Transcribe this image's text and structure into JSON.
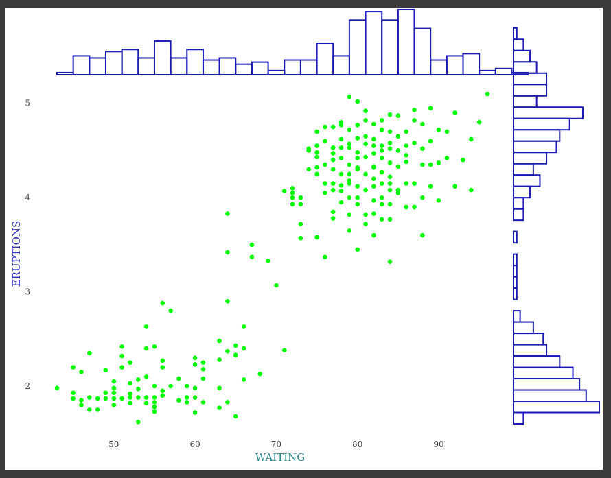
{
  "colors": {
    "points": "#00ff00",
    "histogram_stroke": "#1a1ab3",
    "x_label": "#2a8a8a",
    "y_label": "#3333cc",
    "ticks": "#444444"
  },
  "chart_data": [
    {
      "type": "scatter",
      "xlabel": "WAITING",
      "ylabel": "ERUPTIONS",
      "xlim": [
        43,
        96
      ],
      "ylim": [
        1.6,
        5.1
      ],
      "xticks": [
        50,
        60,
        70,
        80,
        90
      ],
      "yticks": [
        2,
        3,
        4,
        5
      ],
      "grid": false,
      "points": [
        [
          43,
          1.98
        ],
        [
          45,
          2.2
        ],
        [
          45,
          1.93
        ],
        [
          45,
          1.87
        ],
        [
          46,
          2.15
        ],
        [
          46,
          1.85
        ],
        [
          46,
          1.8
        ],
        [
          47,
          2.35
        ],
        [
          47,
          1.88
        ],
        [
          47,
          1.75
        ],
        [
          48,
          1.87
        ],
        [
          48,
          1.75
        ],
        [
          49,
          2.17
        ],
        [
          49,
          1.93
        ],
        [
          49,
          1.87
        ],
        [
          50,
          2.05
        ],
        [
          50,
          1.93
        ],
        [
          50,
          1.87
        ],
        [
          50,
          1.98
        ],
        [
          50,
          1.8
        ],
        [
          51,
          2.42
        ],
        [
          51,
          2.32
        ],
        [
          51,
          2.2
        ],
        [
          51,
          1.87
        ],
        [
          52,
          2.25
        ],
        [
          52,
          2.03
        ],
        [
          52,
          1.92
        ],
        [
          52,
          1.88
        ],
        [
          52,
          1.82
        ],
        [
          53,
          2.07
        ],
        [
          53,
          1.97
        ],
        [
          53,
          1.88
        ],
        [
          53,
          1.62
        ],
        [
          54,
          2.63
        ],
        [
          54,
          2.4
        ],
        [
          54,
          2.1
        ],
        [
          54,
          1.82
        ],
        [
          54,
          1.88
        ],
        [
          55,
          2.42
        ],
        [
          55,
          2.0
        ],
        [
          55,
          1.88
        ],
        [
          55,
          1.83
        ],
        [
          55,
          1.78
        ],
        [
          55,
          1.73
        ],
        [
          56,
          2.88
        ],
        [
          56,
          2.27
        ],
        [
          56,
          2.2
        ],
        [
          56,
          1.9
        ],
        [
          56,
          1.95
        ],
        [
          57,
          2.8
        ],
        [
          57,
          2.0
        ],
        [
          58,
          2.08
        ],
        [
          58,
          1.85
        ],
        [
          59,
          2.0
        ],
        [
          59,
          1.88
        ],
        [
          59,
          1.83
        ],
        [
          60,
          2.3
        ],
        [
          60,
          2.23
        ],
        [
          60,
          1.98
        ],
        [
          60,
          1.88
        ],
        [
          60,
          1.72
        ],
        [
          61,
          2.25
        ],
        [
          61,
          2.18
        ],
        [
          61,
          2.08
        ],
        [
          61,
          1.83
        ],
        [
          63,
          2.48
        ],
        [
          63,
          2.28
        ],
        [
          63,
          1.98
        ],
        [
          63,
          1.77
        ],
        [
          64,
          2.9
        ],
        [
          64,
          2.37
        ],
        [
          64,
          1.83
        ],
        [
          65,
          2.33
        ],
        [
          65,
          2.43
        ],
        [
          65,
          1.68
        ],
        [
          66,
          2.63
        ],
        [
          66,
          2.4
        ],
        [
          66,
          2.07
        ],
        [
          67,
          3.5
        ],
        [
          67,
          3.37
        ],
        [
          68,
          2.13
        ],
        [
          64,
          3.83
        ],
        [
          64,
          3.42
        ],
        [
          69,
          3.33
        ],
        [
          70,
          3.07
        ],
        [
          71,
          2.38
        ],
        [
          71,
          4.07
        ],
        [
          72,
          4.1
        ],
        [
          72,
          4.05
        ],
        [
          72,
          4.0
        ],
        [
          72,
          3.93
        ],
        [
          73,
          3.72
        ],
        [
          73,
          3.57
        ],
        [
          73,
          4.0
        ],
        [
          73,
          3.93
        ],
        [
          74,
          4.3
        ],
        [
          74,
          4.52
        ],
        [
          75,
          4.7
        ],
        [
          75,
          4.48
        ],
        [
          75,
          4.43
        ],
        [
          75,
          4.32
        ],
        [
          75,
          4.25
        ],
        [
          75,
          3.58
        ],
        [
          76,
          4.35
        ],
        [
          76,
          4.15
        ],
        [
          76,
          3.37
        ],
        [
          77,
          4.75
        ],
        [
          77,
          4.47
        ],
        [
          77,
          4.53
        ],
        [
          77,
          4.15
        ],
        [
          77,
          4.08
        ],
        [
          77,
          3.85
        ],
        [
          77,
          3.78
        ],
        [
          78,
          4.77
        ],
        [
          78,
          4.8
        ],
        [
          78,
          4.53
        ],
        [
          78,
          4.42
        ],
        [
          78,
          4.25
        ],
        [
          78,
          4.13
        ],
        [
          78,
          4.07
        ],
        [
          79,
          5.07
        ],
        [
          79,
          4.72
        ],
        [
          79,
          4.53
        ],
        [
          79,
          4.35
        ],
        [
          79,
          4.15
        ],
        [
          79,
          4.0
        ],
        [
          79,
          3.82
        ],
        [
          80,
          5.02
        ],
        [
          80,
          4.77
        ],
        [
          80,
          4.63
        ],
        [
          80,
          4.48
        ],
        [
          80,
          4.32
        ],
        [
          80,
          4.12
        ],
        [
          80,
          3.93
        ],
        [
          80,
          3.45
        ],
        [
          81,
          4.82
        ],
        [
          81,
          4.57
        ],
        [
          81,
          4.43
        ],
        [
          81,
          4.25
        ],
        [
          81,
          4.08
        ],
        [
          81,
          3.82
        ],
        [
          81,
          3.72
        ],
        [
          82,
          4.78
        ],
        [
          82,
          4.62
        ],
        [
          82,
          4.47
        ],
        [
          82,
          4.33
        ],
        [
          82,
          4.12
        ],
        [
          82,
          3.97
        ],
        [
          82,
          3.83
        ],
        [
          82,
          3.6
        ],
        [
          83,
          4.82
        ],
        [
          83,
          4.55
        ],
        [
          83,
          4.42
        ],
        [
          83,
          4.27
        ],
        [
          83,
          4.15
        ],
        [
          83,
          3.93
        ],
        [
          83,
          3.77
        ],
        [
          84,
          4.88
        ],
        [
          84,
          4.58
        ],
        [
          84,
          4.37
        ],
        [
          84,
          4.22
        ],
        [
          84,
          4.08
        ],
        [
          84,
          3.93
        ],
        [
          84,
          3.77
        ],
        [
          84,
          3.32
        ],
        [
          85,
          4.87
        ],
        [
          85,
          4.65
        ],
        [
          85,
          4.5
        ],
        [
          85,
          4.33
        ],
        [
          85,
          4.08
        ],
        [
          86,
          4.7
        ],
        [
          86,
          4.55
        ],
        [
          86,
          4.38
        ],
        [
          86,
          3.9
        ],
        [
          87,
          4.93
        ],
        [
          87,
          4.82
        ],
        [
          87,
          4.58
        ],
        [
          87,
          4.15
        ],
        [
          88,
          4.78
        ],
        [
          88,
          4.35
        ],
        [
          88,
          3.6
        ],
        [
          89,
          4.95
        ],
        [
          89,
          4.6
        ],
        [
          89,
          4.35
        ],
        [
          89,
          4.12
        ],
        [
          90,
          4.72
        ],
        [
          90,
          4.37
        ],
        [
          90,
          3.97
        ],
        [
          91,
          4.7
        ],
        [
          91,
          4.42
        ],
        [
          92,
          4.9
        ],
        [
          92,
          4.12
        ],
        [
          93,
          4.4
        ],
        [
          94,
          4.62
        ],
        [
          94,
          4.08
        ],
        [
          95,
          4.8
        ],
        [
          96,
          5.1
        ],
        [
          74,
          4.5
        ],
        [
          76,
          4.6
        ],
        [
          76,
          4.75
        ],
        [
          77,
          4.3
        ],
        [
          79,
          4.25
        ],
        [
          80,
          4.0
        ],
        [
          81,
          4.65
        ],
        [
          82,
          4.55
        ],
        [
          83,
          4.72
        ],
        [
          84,
          4.52
        ],
        [
          85,
          4.05
        ],
        [
          86,
          4.15
        ],
        [
          87,
          3.9
        ],
        [
          88,
          4.0
        ],
        [
          76,
          4.05
        ],
        [
          78,
          3.95
        ],
        [
          79,
          3.65
        ],
        [
          80,
          4.42
        ],
        [
          81,
          4.92
        ],
        [
          82,
          4.32
        ],
        [
          83,
          4.0
        ],
        [
          84,
          4.15
        ],
        [
          83,
          4.5
        ],
        [
          79,
          4.57
        ],
        [
          77,
          4.4
        ],
        [
          78,
          4.62
        ],
        [
          82,
          4.2
        ],
        [
          80,
          4.3
        ],
        [
          75,
          4.55
        ],
        [
          84,
          4.7
        ],
        [
          86,
          4.45
        ],
        [
          88,
          4.52
        ],
        [
          79,
          4.18
        ]
      ]
    },
    {
      "type": "bar",
      "orientation": "vertical",
      "xlabel": "",
      "ylabel": "",
      "bin_start": 43,
      "bin_width": 2,
      "values": [
        1,
        9,
        8,
        11,
        12,
        8,
        16,
        8,
        12,
        7,
        8,
        5,
        6,
        2,
        7,
        7,
        15,
        9,
        26,
        30,
        26,
        31,
        22,
        7,
        9,
        10,
        2,
        3,
        1
      ]
    },
    {
      "type": "bar",
      "orientation": "horizontal",
      "xlabel": "",
      "ylabel": "",
      "bin_start": 1.6,
      "bin_width": 0.12,
      "values": [
        3,
        26,
        22,
        20,
        18,
        14,
        10,
        9,
        6,
        2,
        0,
        1,
        1,
        1,
        1,
        0,
        1,
        0,
        3,
        3,
        5,
        8,
        6,
        10,
        13,
        14,
        17,
        21,
        7,
        10,
        10,
        7,
        5,
        3,
        1
      ]
    }
  ]
}
